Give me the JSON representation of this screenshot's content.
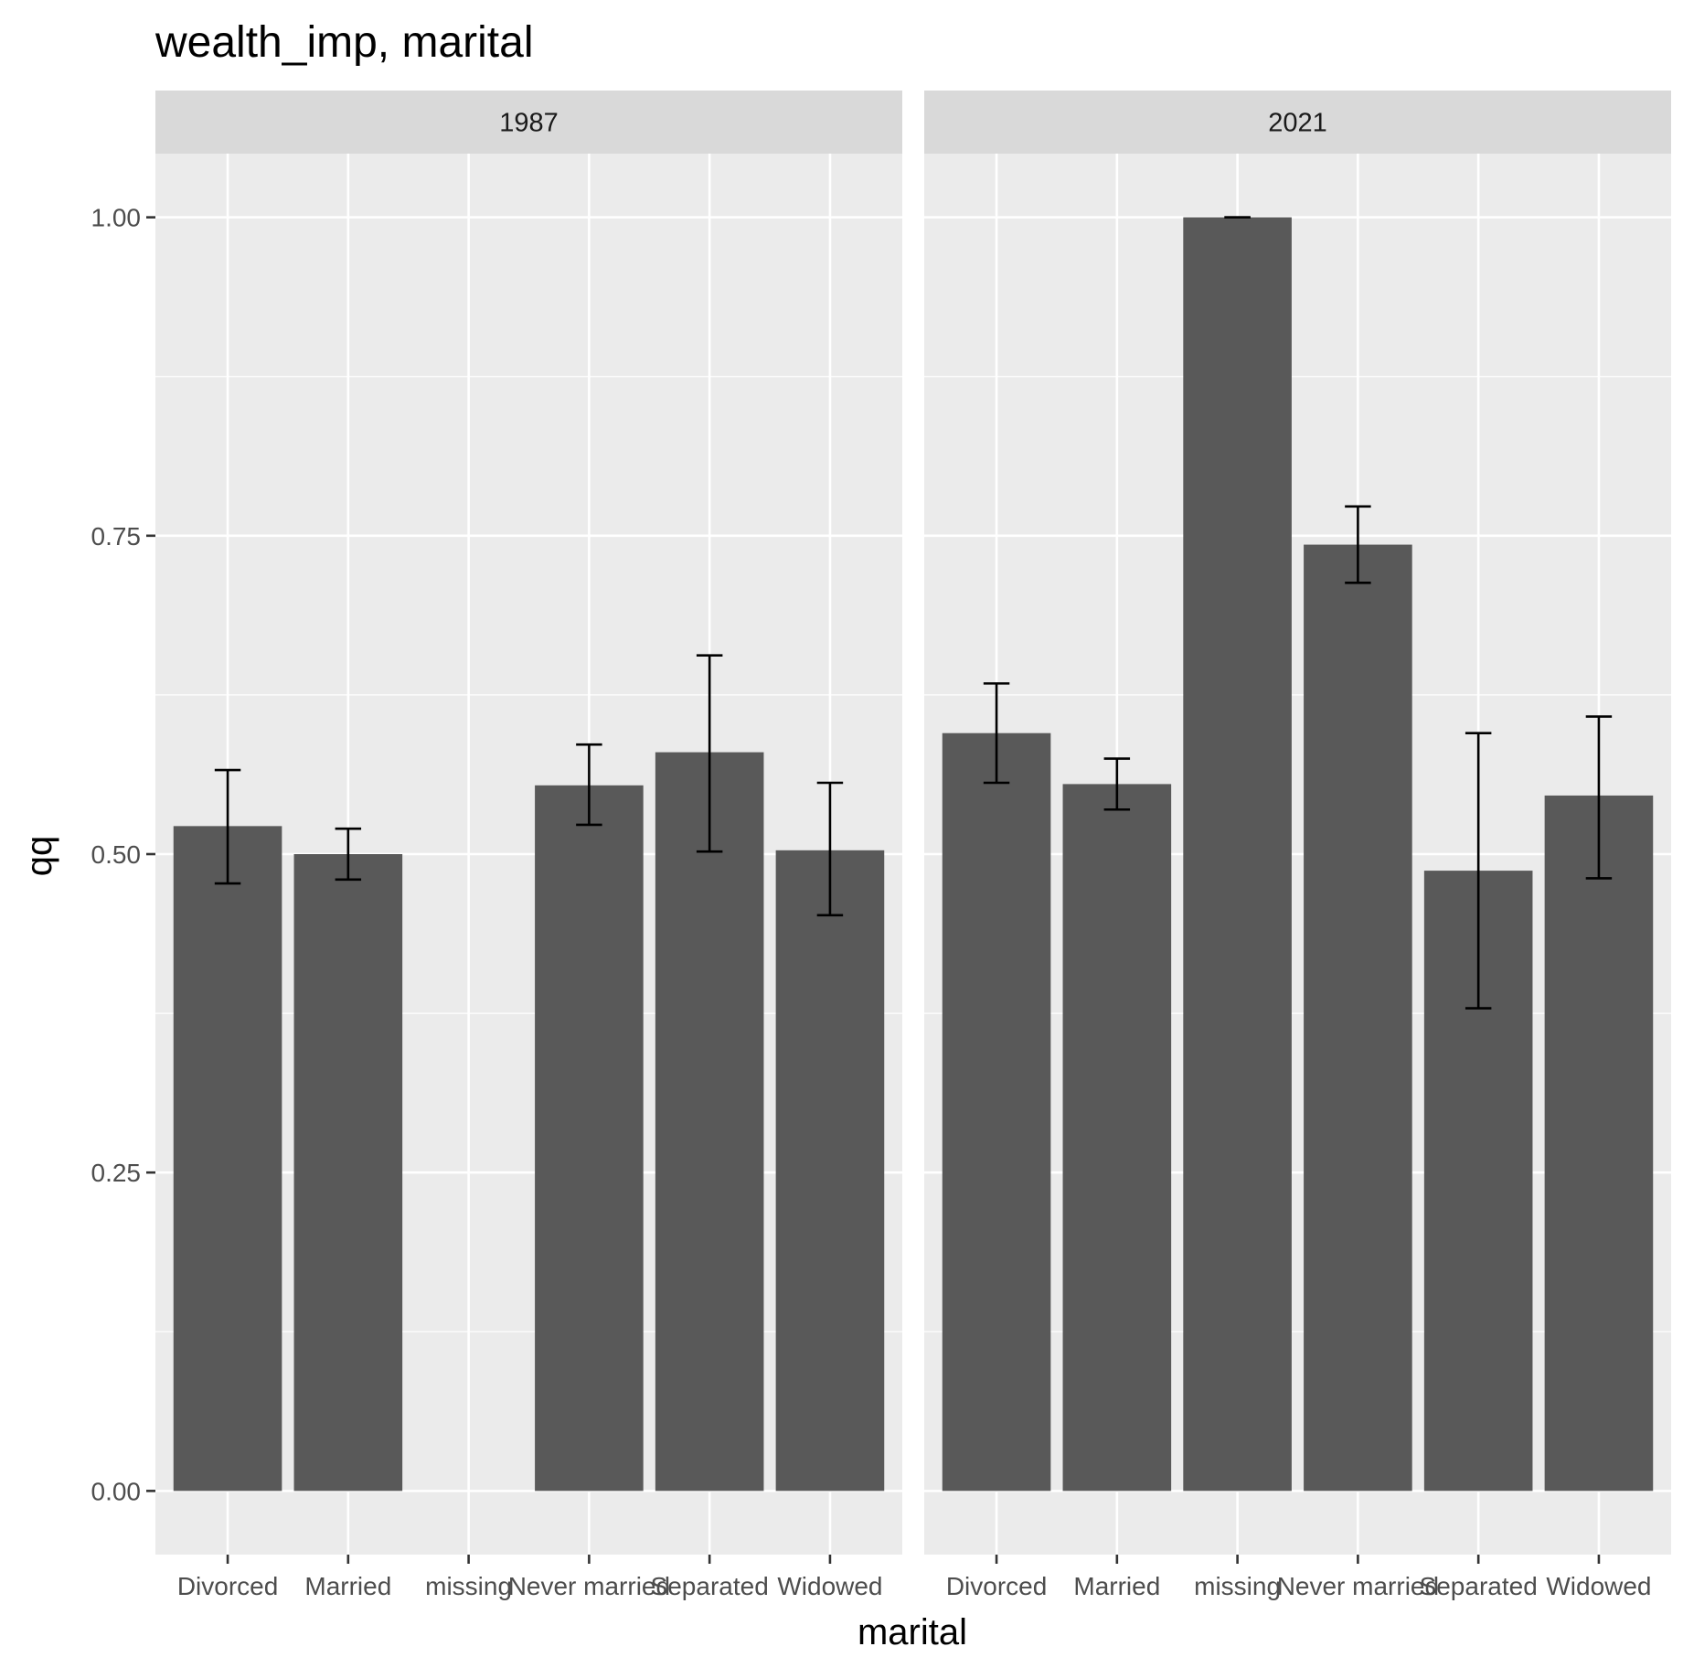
{
  "chart_data": {
    "type": "bar",
    "title": "wealth_imp, marital",
    "xlabel": "marital",
    "ylabel": "qq",
    "ylim": [
      -0.05,
      1.05
    ],
    "yticks": [
      0.0,
      0.25,
      0.5,
      0.75,
      1.0
    ],
    "ytick_labels": [
      "0.00",
      "0.25",
      "0.50",
      "0.75",
      "1.00"
    ],
    "grid": true,
    "categories": [
      "Divorced",
      "Married",
      "missing",
      "Never married",
      "Separated",
      "Widowed"
    ],
    "panels": [
      {
        "name": "1987",
        "values": [
          0.522,
          0.5,
          null,
          0.554,
          0.58,
          0.503
        ],
        "error_low": [
          0.477,
          0.48,
          null,
          0.523,
          0.502,
          0.452
        ],
        "error_high": [
          0.566,
          0.52,
          null,
          0.586,
          0.656,
          0.556
        ]
      },
      {
        "name": "2021",
        "values": [
          0.595,
          0.555,
          1.0,
          0.743,
          0.487,
          0.546
        ],
        "error_low": [
          0.556,
          0.535,
          1.0,
          0.713,
          0.379,
          0.481
        ],
        "error_high": [
          0.634,
          0.575,
          1.0,
          0.773,
          0.595,
          0.608
        ]
      }
    ],
    "colors": {
      "bar": "#595959",
      "panel_background": "#ebebeb",
      "strip_background": "#d9d9d9",
      "grid": "#ffffff",
      "error_bar": "#000000"
    }
  }
}
